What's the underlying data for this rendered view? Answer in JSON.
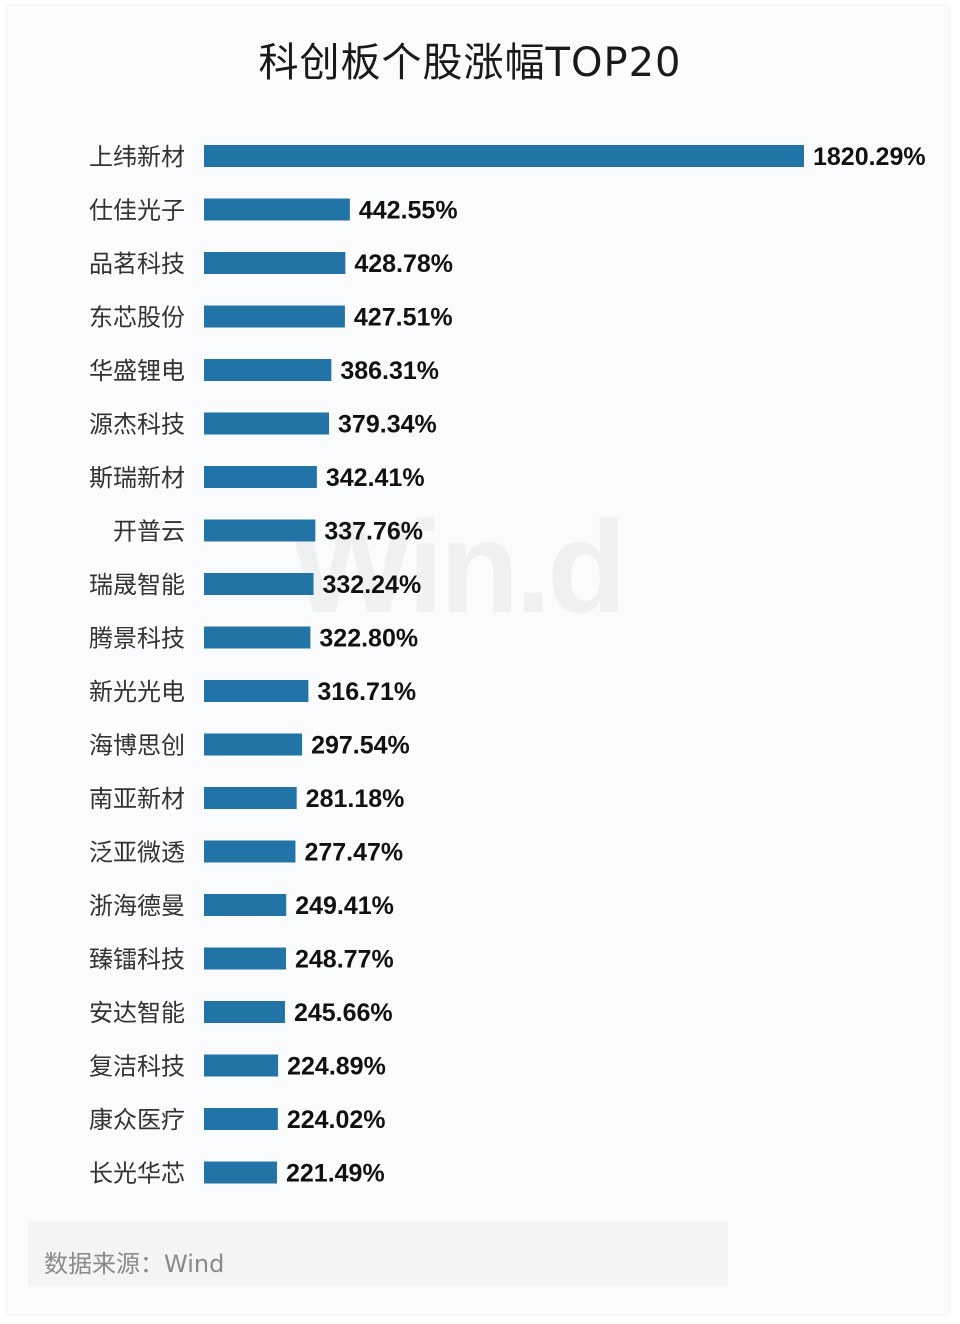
{
  "title": "科创板个股涨幅TOP20",
  "source": "数据来源：Wind",
  "watermark": "Win.d",
  "colors": {
    "bar": "#2374a6",
    "card_bg": "#fafbfc"
  },
  "chart_data": {
    "type": "bar",
    "orientation": "horizontal",
    "title": "科创板个股涨幅TOP20",
    "categories": [
      "上纬新材",
      "仕佳光子",
      "品茗科技",
      "东芯股份",
      "华盛锂电",
      "源杰科技",
      "斯瑞新材",
      "开普云",
      "瑞晟智能",
      "腾景科技",
      "新光光电",
      "海博思创",
      "南亚新材",
      "泛亚微透",
      "浙海德曼",
      "臻镭科技",
      "安达智能",
      "复洁科技",
      "康众医疗",
      "长光华芯"
    ],
    "values": [
      1820.29,
      442.55,
      428.78,
      427.51,
      386.31,
      379.34,
      342.41,
      337.76,
      332.24,
      322.8,
      316.71,
      297.54,
      281.18,
      277.47,
      249.41,
      248.77,
      245.66,
      224.89,
      224.02,
      221.49
    ],
    "value_labels": [
      "1820.29%",
      "442.55%",
      "428.78%",
      "427.51%",
      "386.31%",
      "379.34%",
      "342.41%",
      "337.76%",
      "332.24%",
      "322.80%",
      "316.71%",
      "297.54%",
      "281.18%",
      "277.47%",
      "249.41%",
      "248.77%",
      "245.66%",
      "224.89%",
      "224.02%",
      "221.49%"
    ],
    "xlabel": "",
    "ylabel": "",
    "xlim": [
      0,
      1820.29
    ],
    "grid": false,
    "legend": "none"
  }
}
